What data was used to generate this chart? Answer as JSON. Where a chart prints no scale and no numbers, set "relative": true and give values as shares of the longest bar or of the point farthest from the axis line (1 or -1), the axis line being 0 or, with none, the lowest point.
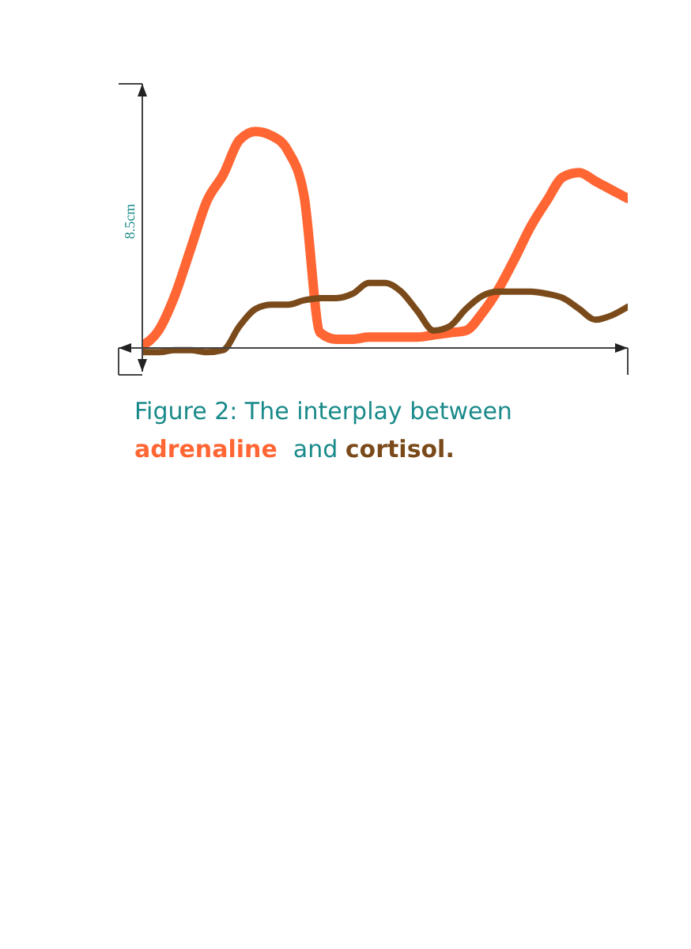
{
  "chart_data": {
    "type": "line",
    "relative": true,
    "title": "Figure 2: The interplay between",
    "subtitle": "adrenaline  and cortisol.",
    "ylabel": "8.5cm",
    "categories": [
      null,
      null,
      null,
      null,
      null,
      null,
      null,
      null,
      null,
      null,
      null,
      null,
      null,
      null,
      null,
      null,
      null,
      null,
      null,
      null,
      null,
      null,
      null,
      null,
      null,
      null,
      null,
      null,
      null,
      null,
      null
    ],
    "series": [
      {
        "color": "#ff6633",
        "values": [
          0.01,
          0.08,
          0.24,
          0.46,
          0.68,
          0.8,
          0.96,
          1.0,
          0.98,
          0.91,
          0.7,
          0.07,
          0.04,
          0.04,
          0.05,
          0.05,
          0.05,
          0.05,
          0.06,
          0.07,
          0.08,
          0.16,
          0.27,
          0.41,
          0.56,
          0.68,
          0.79,
          0.81,
          0.77,
          0.73,
          0.69
        ]
      },
      {
        "color": "#7a4a1a",
        "values": [
          -0.02,
          -0.02,
          -0.01,
          -0.01,
          -0.02,
          -0.01,
          0.1,
          0.18,
          0.2,
          0.2,
          0.22,
          0.23,
          0.23,
          0.25,
          0.3,
          0.3,
          0.26,
          0.17,
          0.08,
          0.1,
          0.18,
          0.24,
          0.26,
          0.26,
          0.26,
          0.25,
          0.23,
          0.18,
          0.13,
          0.15,
          0.19
        ]
      }
    ]
  }
}
